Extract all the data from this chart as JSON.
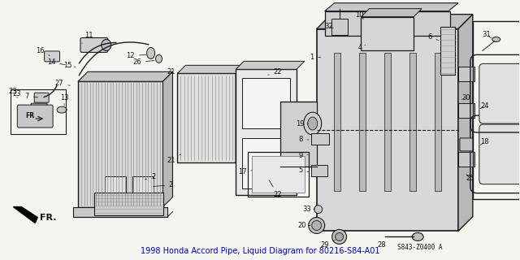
{
  "title": "1998 Honda Accord Pipe, Liquid Diagram for 80216-S84-A01",
  "diagram_number": "S843-Z0400 A",
  "bg_color": "#f5f5f0",
  "line_color": "#1a1a1a",
  "text_color": "#111111",
  "label_fontsize": 6.0,
  "title_fontsize": 7.0,
  "title_color": "#0000cc"
}
